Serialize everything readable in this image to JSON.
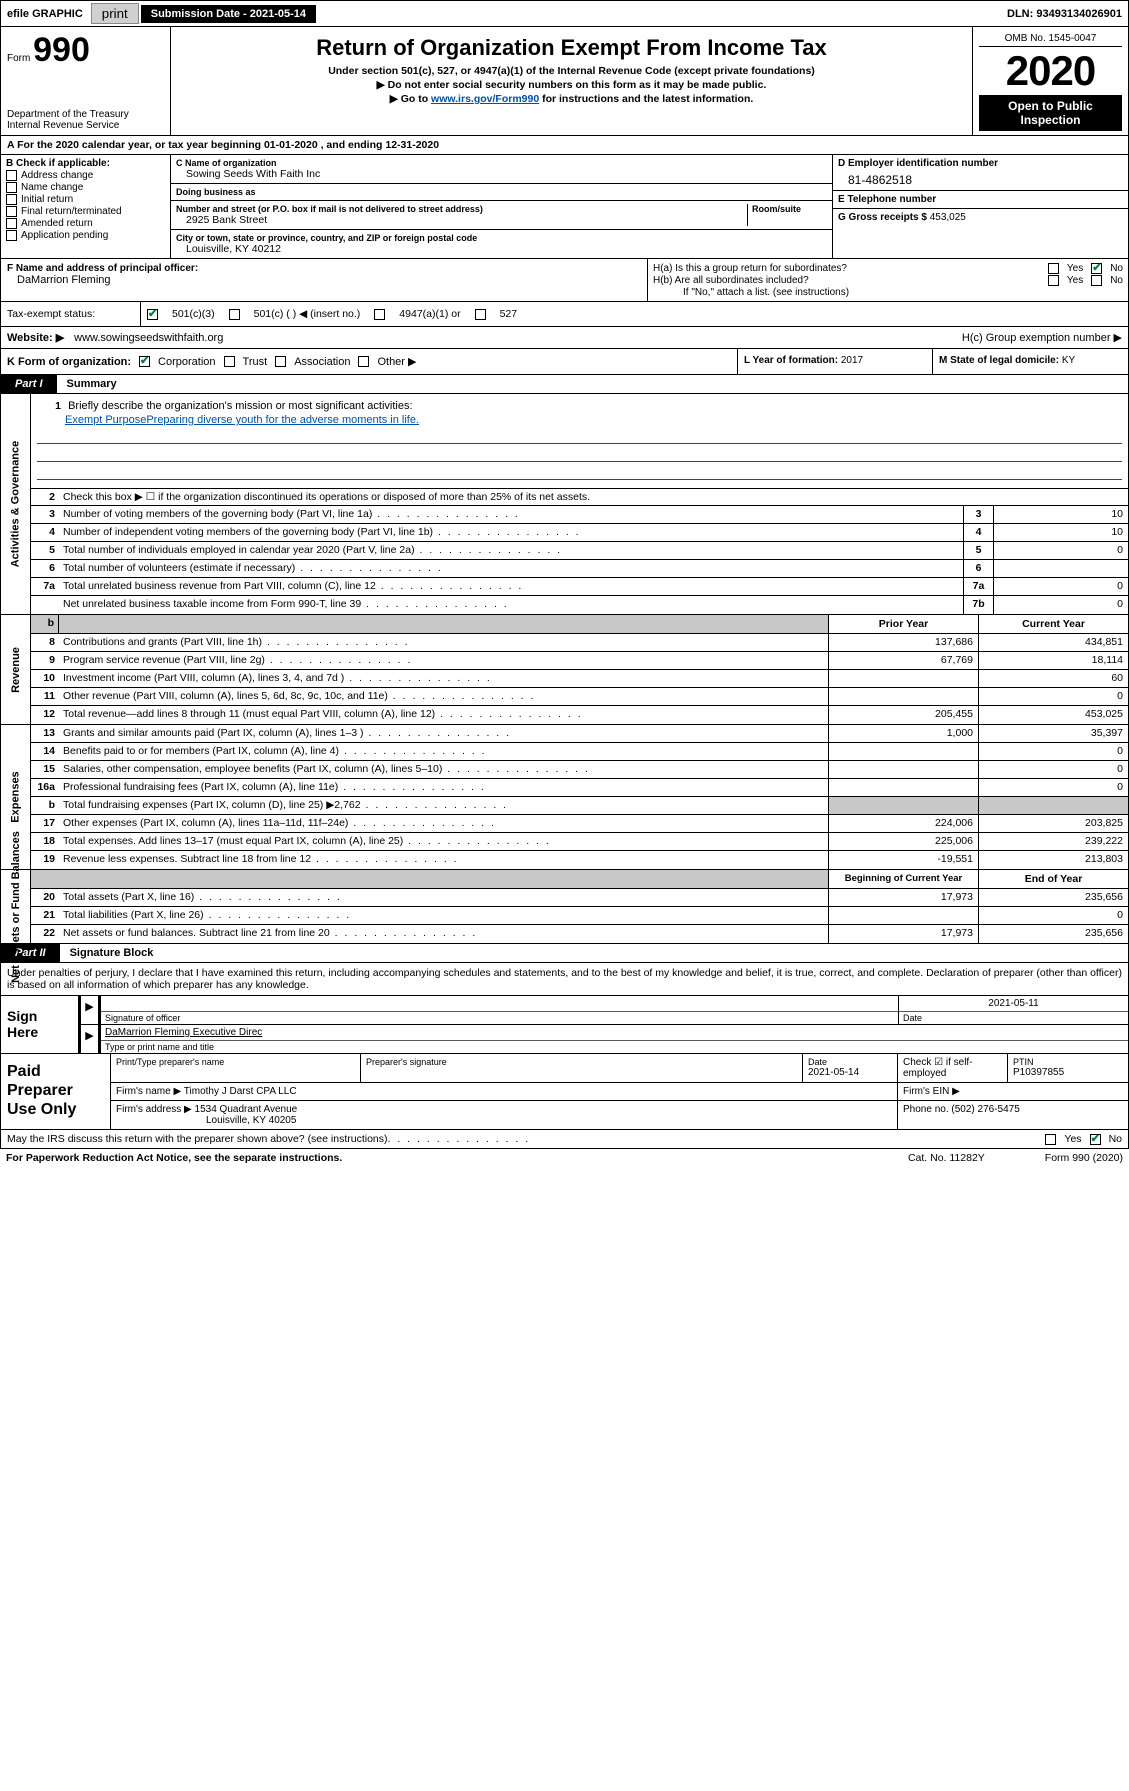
{
  "topbar": {
    "efile": "efile GRAPHIC",
    "print": "print",
    "subdate_label": "Submission Date - 2021-05-14",
    "dln": "DLN: 93493134026901"
  },
  "header": {
    "form_prefix": "Form",
    "form_number": "990",
    "title": "Return of Organization Exempt From Income Tax",
    "sub1": "Under section 501(c), 527, or 4947(a)(1) of the Internal Revenue Code (except private foundations)",
    "sub2": "▶ Do not enter social security numbers on this form as it may be made public.",
    "sub3_pre": "▶ Go to ",
    "sub3_link": "www.irs.gov/Form990",
    "sub3_post": " for instructions and the latest information.",
    "dept": "Department of the Treasury\nInternal Revenue Service",
    "omb": "OMB No. 1545-0047",
    "year": "2020",
    "open": "Open to Public Inspection"
  },
  "period": "For the 2020 calendar year, or tax year beginning 01-01-2020    , and ending 12-31-2020",
  "boxB": {
    "header": "B Check if applicable:",
    "items": [
      "Address change",
      "Name change",
      "Initial return",
      "Final return/terminated",
      "Amended return",
      "Application pending"
    ]
  },
  "boxC": {
    "name_lbl": "C Name of organization",
    "name": "Sowing Seeds With Faith Inc",
    "dba_lbl": "Doing business as",
    "dba": "",
    "street_lbl": "Number and street (or P.O. box if mail is not delivered to street address)",
    "room_lbl": "Room/suite",
    "street": "2925 Bank Street",
    "city_lbl": "City or town, state or province, country, and ZIP or foreign postal code",
    "city": "Louisville, KY  40212"
  },
  "boxD": {
    "lbl": "D Employer identification number",
    "val": "81-4862518"
  },
  "boxE": {
    "lbl": "E Telephone number",
    "val": ""
  },
  "boxG": {
    "lbl": "G Gross receipts $",
    "val": "453,025"
  },
  "boxF": {
    "lbl": "F  Name and address of principal officer:",
    "val": "DaMarrion Fleming"
  },
  "boxH": {
    "a": "H(a)  Is this a group return for subordinates?",
    "b": "H(b)  Are all subordinates included?",
    "b_note": "If \"No,\" attach a list. (see instructions)",
    "c": "H(c)  Group exemption number ▶",
    "yes": "Yes",
    "no": "No"
  },
  "taxexempt": {
    "lbl": "Tax-exempt status:",
    "opt1": "501(c)(3)",
    "opt2": "501(c) (   ) ◀ (insert no.)",
    "opt3": "4947(a)(1) or",
    "opt4": "527"
  },
  "website": {
    "lbl": "Website: ▶",
    "val": "www.sowingseedswithfaith.org"
  },
  "K": {
    "lbl": "K Form of organization:",
    "opts": [
      "Corporation",
      "Trust",
      "Association",
      "Other ▶"
    ]
  },
  "L": {
    "lbl": "L Year of formation:",
    "val": "2017"
  },
  "M": {
    "lbl": "M State of legal domicile:",
    "val": "KY"
  },
  "part1": {
    "tab": "Part I",
    "title": "Summary"
  },
  "part2": {
    "tab": "Part II",
    "title": "Signature Block"
  },
  "mission": {
    "num": "1",
    "lbl": "Briefly describe the organization's mission or most significant activities:",
    "text": "Exempt PurposePreparing diverse youth for the adverse moments in life."
  },
  "line2": {
    "num": "2",
    "text": "Check this box ▶ ☐  if the organization discontinued its operations or disposed of more than 25% of its net assets."
  },
  "governance_lines": [
    {
      "num": "3",
      "text": "Number of voting members of the governing body (Part VI, line 1a)",
      "box": "3",
      "val": "10"
    },
    {
      "num": "4",
      "text": "Number of independent voting members of the governing body (Part VI, line 1b)",
      "box": "4",
      "val": "10"
    },
    {
      "num": "5",
      "text": "Total number of individuals employed in calendar year 2020 (Part V, line 2a)",
      "box": "5",
      "val": "0"
    },
    {
      "num": "6",
      "text": "Total number of volunteers (estimate if necessary)",
      "box": "6",
      "val": ""
    },
    {
      "num": "7a",
      "text": "Total unrelated business revenue from Part VIII, column (C), line 12",
      "box": "7a",
      "val": "0"
    },
    {
      "num": "",
      "text": "Net unrelated business taxable income from Form 990-T, line 39",
      "box": "7b",
      "val": "0"
    }
  ],
  "col_headers": {
    "b": "b",
    "prior": "Prior Year",
    "current": "Current Year",
    "begin": "Beginning of Current Year",
    "end": "End of Year"
  },
  "revenue_lines": [
    {
      "num": "8",
      "text": "Contributions and grants (Part VIII, line 1h)",
      "prior": "137,686",
      "current": "434,851"
    },
    {
      "num": "9",
      "text": "Program service revenue (Part VIII, line 2g)",
      "prior": "67,769",
      "current": "18,114"
    },
    {
      "num": "10",
      "text": "Investment income (Part VIII, column (A), lines 3, 4, and 7d )",
      "prior": "",
      "current": "60"
    },
    {
      "num": "11",
      "text": "Other revenue (Part VIII, column (A), lines 5, 6d, 8c, 9c, 10c, and 11e)",
      "prior": "",
      "current": "0"
    },
    {
      "num": "12",
      "text": "Total revenue—add lines 8 through 11 (must equal Part VIII, column (A), line 12)",
      "prior": "205,455",
      "current": "453,025"
    }
  ],
  "expense_lines": [
    {
      "num": "13",
      "text": "Grants and similar amounts paid (Part IX, column (A), lines 1–3 )",
      "prior": "1,000",
      "current": "35,397"
    },
    {
      "num": "14",
      "text": "Benefits paid to or for members (Part IX, column (A), line 4)",
      "prior": "",
      "current": "0"
    },
    {
      "num": "15",
      "text": "Salaries, other compensation, employee benefits (Part IX, column (A), lines 5–10)",
      "prior": "",
      "current": "0"
    },
    {
      "num": "16a",
      "text": "Professional fundraising fees (Part IX, column (A), line 11e)",
      "prior": "",
      "current": "0"
    },
    {
      "num": "b",
      "text": "Total fundraising expenses (Part IX, column (D), line 25) ▶2,762",
      "prior": "shade",
      "current": "shade"
    },
    {
      "num": "17",
      "text": "Other expenses (Part IX, column (A), lines 11a–11d, 11f–24e)",
      "prior": "224,006",
      "current": "203,825"
    },
    {
      "num": "18",
      "text": "Total expenses. Add lines 13–17 (must equal Part IX, column (A), line 25)",
      "prior": "225,006",
      "current": "239,222"
    },
    {
      "num": "19",
      "text": "Revenue less expenses. Subtract line 18 from line 12",
      "prior": "-19,551",
      "current": "213,803"
    }
  ],
  "netassets_lines": [
    {
      "num": "20",
      "text": "Total assets (Part X, line 16)",
      "prior": "17,973",
      "current": "235,656"
    },
    {
      "num": "21",
      "text": "Total liabilities (Part X, line 26)",
      "prior": "",
      "current": "0"
    },
    {
      "num": "22",
      "text": "Net assets or fund balances. Subtract line 21 from line 20",
      "prior": "17,973",
      "current": "235,656"
    }
  ],
  "side_labels": {
    "gov": "Activities & Governance",
    "rev": "Revenue",
    "exp": "Expenses",
    "net": "Net Assets or Fund Balances"
  },
  "perjury": "Under penalties of perjury, I declare that I have examined this return, including accompanying schedules and statements, and to the best of my knowledge and belief, it is true, correct, and complete. Declaration of preparer (other than officer) is based on all information of which preparer has any knowledge.",
  "sign": {
    "here": "Sign Here",
    "sig_officer": "Signature of officer",
    "date": "Date",
    "date_val": "2021-05-11",
    "name_title": "DaMarrion Fleming  Executive Direc",
    "name_lbl": "Type or print name and title"
  },
  "preparer": {
    "label": "Paid Preparer Use Only",
    "h_print": "Print/Type preparer's name",
    "h_sig": "Preparer's signature",
    "h_date": "Date",
    "date_val": "2021-05-14",
    "h_check": "Check ☑ if self-employed",
    "h_ptin": "PTIN",
    "ptin": "P10397855",
    "firm_name_lbl": "Firm's name      ▶",
    "firm_name": "Timothy J Darst CPA LLC",
    "firm_ein_lbl": "Firm's EIN ▶",
    "firm_addr_lbl": "Firm's address ▶",
    "firm_addr": "1534 Quadrant Avenue",
    "firm_addr2": "Louisville, KY  40205",
    "phone_lbl": "Phone no.",
    "phone": "(502) 276-5475"
  },
  "footer": {
    "discuss": "May the IRS discuss this return with the preparer shown above? (see instructions)",
    "paperwork": "For Paperwork Reduction Act Notice, see the separate instructions.",
    "cat": "Cat. No. 11282Y",
    "formno": "Form 990 (2020)"
  }
}
